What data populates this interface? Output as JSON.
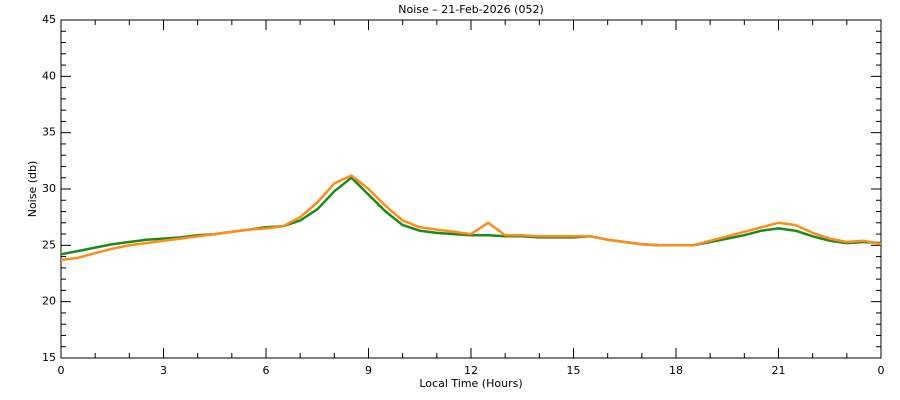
{
  "chart_data": {
    "type": "line",
    "title": "Noise – 21-Feb-2026 (052)",
    "x_label": "Local Time (Hours)",
    "y_label": "Noise (db)",
    "xlim": [
      0,
      24
    ],
    "ylim": [
      15,
      45
    ],
    "xticks": [
      0,
      3,
      6,
      9,
      12,
      15,
      18,
      21,
      {
        "value": 24,
        "label": "0"
      }
    ],
    "yticks": [
      15,
      20,
      25,
      30,
      35,
      40,
      45
    ],
    "minor_xticks": [
      1,
      2,
      4,
      5,
      7,
      8,
      10,
      11,
      13,
      14,
      16,
      17,
      19,
      20,
      22,
      23
    ],
    "minor_yticks": [
      16,
      17,
      18,
      19,
      21,
      22,
      23,
      24,
      26,
      27,
      28,
      29,
      31,
      32,
      33,
      34,
      36,
      37,
      38,
      39,
      41,
      42,
      43,
      44
    ],
    "x": [
      0,
      0.5,
      1,
      1.5,
      2,
      2.5,
      3,
      3.5,
      4,
      4.5,
      5,
      5.5,
      6,
      6.5,
      7,
      7.5,
      8,
      8.5,
      9,
      9.5,
      10,
      10.5,
      11,
      11.5,
      12,
      12.5,
      13,
      13.5,
      14,
      14.5,
      15,
      15.5,
      16,
      16.5,
      17,
      17.5,
      18,
      18.5,
      19,
      19.5,
      20,
      20.5,
      21,
      21.5,
      22,
      22.5,
      23,
      23.5,
      24
    ],
    "series": [
      {
        "color": "#1a8a1a",
        "values": [
          24.2,
          24.5,
          24.8,
          25.1,
          25.3,
          25.5,
          25.6,
          25.7,
          25.9,
          26.0,
          26.2,
          26.4,
          26.6,
          26.7,
          27.2,
          28.2,
          29.8,
          31.0,
          29.5,
          28.0,
          26.8,
          26.3,
          26.1,
          26.0,
          25.9,
          25.9,
          25.8,
          25.8,
          25.7,
          25.7,
          25.7,
          25.8,
          25.5,
          25.3,
          25.1,
          25.0,
          25.0,
          25.0,
          25.3,
          25.6,
          25.9,
          26.3,
          26.5,
          26.3,
          25.8,
          25.4,
          25.2,
          25.3,
          25.2
        ]
      },
      {
        "color": "#ff8c1a",
        "values": [
          23.7,
          23.9,
          24.3,
          24.7,
          25.0,
          25.2,
          25.4,
          25.6,
          25.8,
          26.0,
          26.2,
          26.4,
          26.5,
          26.7,
          27.5,
          28.8,
          30.5,
          31.2,
          30.0,
          28.5,
          27.2,
          26.6,
          26.4,
          26.2,
          26.0,
          27.0,
          25.9,
          25.9,
          25.8,
          25.8,
          25.8,
          25.8,
          25.5,
          25.3,
          25.1,
          25.0,
          25.0,
          25.0,
          25.4,
          25.8,
          26.2,
          26.6,
          27.0,
          26.8,
          26.1,
          25.6,
          25.3,
          25.4,
          25.1
        ]
      }
    ]
  }
}
